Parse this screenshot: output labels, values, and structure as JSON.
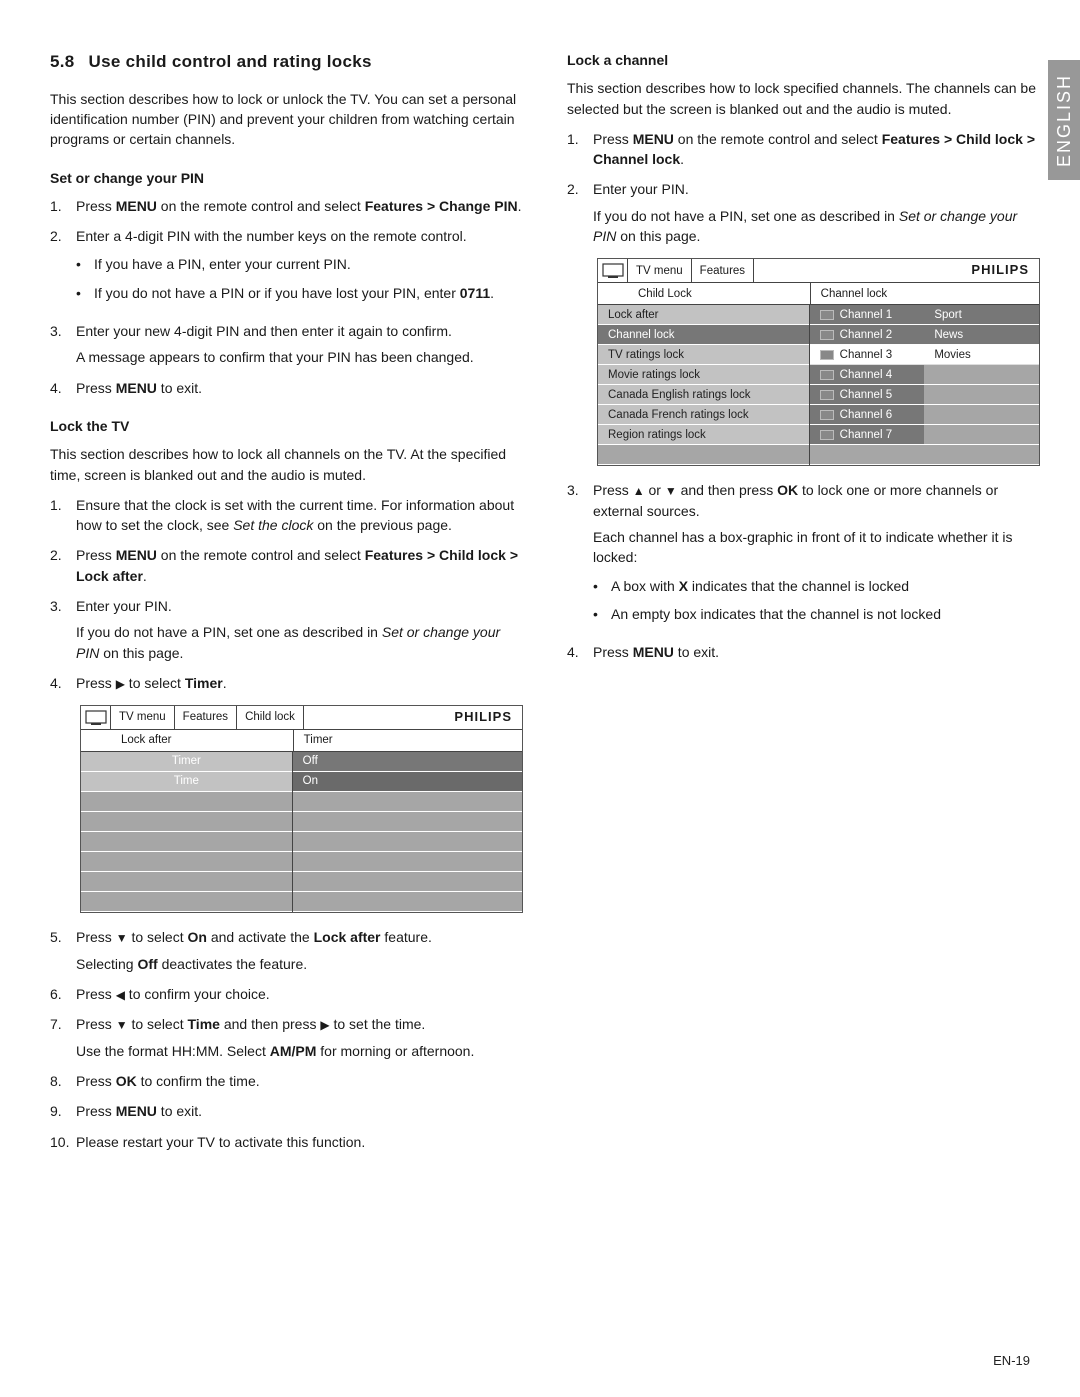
{
  "lang_tab": "ENGLISH",
  "section_number": "5.8",
  "section_title": "Use child control and rating locks",
  "intro": "This section describes how to lock or unlock the TV.  You can set a personal identification number (PIN) and prevent your children from watching certain programs or certain channels.",
  "subheads": {
    "set_pin": "Set or change your PIN",
    "lock_tv": "Lock the TV",
    "lock_channel": "Lock a channel"
  },
  "set_pin_steps": [
    {
      "num": "1.",
      "parts": [
        "Press ",
        "MENU",
        " on the remote control and select ",
        "Features > Change PIN",
        "."
      ]
    },
    {
      "num": "2.",
      "parts": [
        "Enter a 4-digit PIN with the number keys on the remote control."
      ],
      "bullets": [
        [
          "If you have a PIN, enter your current PIN."
        ],
        [
          "If you do not have a PIN or if you have lost your PIN, enter ",
          "0711",
          "."
        ]
      ]
    },
    {
      "num": "3.",
      "parts": [
        "Enter your new 4-digit PIN and then enter it again to confirm."
      ],
      "after": "A message appears to confirm that your PIN has been changed."
    },
    {
      "num": "4.",
      "parts": [
        "Press ",
        "MENU",
        " to exit."
      ]
    }
  ],
  "lock_tv_intro": "This section describes how to lock all channels on the TV.  At the specified time, screen is blanked out and the audio is muted.",
  "lock_tv_steps_a": [
    {
      "num": "1.",
      "parts": [
        "Ensure that the clock is set with the current time.  For information about how to set the clock, see "
      ],
      "italic": "Set the clock",
      "tail": " on the previous page."
    },
    {
      "num": "2.",
      "parts": [
        "Press ",
        "MENU",
        " on the remote control and select ",
        "Features > Child lock > Lock after",
        "."
      ]
    },
    {
      "num": "3.",
      "parts": [
        "Enter your PIN."
      ],
      "after_parts": [
        "If you do not have a PIN, set one as described in "
      ],
      "after_italic": "Set or change your PIN",
      "after_tail": " on this page."
    },
    {
      "num": "4.",
      "parts": [
        "Press ",
        "▶",
        " to select ",
        "Timer",
        "."
      ]
    }
  ],
  "lock_tv_steps_b": [
    {
      "num": "5.",
      "parts": [
        "Press ",
        "▼",
        " to select ",
        "On",
        " and activate the ",
        "Lock after",
        " feature."
      ],
      "after_parts": [
        "Selecting ",
        "Off",
        " deactivates the feature."
      ]
    },
    {
      "num": "6.",
      "parts": [
        "Press ",
        "◀",
        " to confirm your choice."
      ]
    },
    {
      "num": "7.",
      "parts": [
        "Press ",
        "▼",
        " to select ",
        "Time",
        " and then press ",
        "▶",
        " to set the time."
      ],
      "after_parts": [
        "Use the format HH:MM.  Select ",
        "AM/PM",
        " for morning or afternoon."
      ]
    },
    {
      "num": "8.",
      "parts": [
        "Press ",
        "OK",
        " to confirm the time."
      ]
    },
    {
      "num": "9.",
      "parts": [
        "Press ",
        "MENU",
        " to exit."
      ]
    },
    {
      "num": "10.",
      "parts": [
        "Please restart your TV to activate this function."
      ]
    }
  ],
  "lock_channel_intro": "This section describes how to lock specified channels.  The channels can be selected but the screen is blanked out and the audio is muted.",
  "lock_channel_steps_a": [
    {
      "num": "1.",
      "parts": [
        "Press ",
        "MENU",
        " on the remote control and select ",
        "Features > Child lock > Channel lock",
        "."
      ]
    },
    {
      "num": "2.",
      "parts": [
        "Enter your PIN."
      ],
      "after_parts": [
        "If you do not have a PIN, set one as described in "
      ],
      "after_italic": "Set or change your PIN",
      "after_tail": " on this page."
    }
  ],
  "lock_channel_steps_b": [
    {
      "num": "3.",
      "parts": [
        "Press ",
        "▲",
        " or ",
        "▼",
        " and then press ",
        "OK",
        " to lock one or more channels or external sources."
      ],
      "after": "Each channel has a box-graphic in front of it to indicate whether it is locked:",
      "bullets": [
        [
          "A box with ",
          "X",
          " indicates that the channel is locked"
        ],
        [
          "An empty box indicates that the channel is not locked"
        ]
      ]
    },
    {
      "num": "4.",
      "parts": [
        "Press ",
        "MENU",
        " to exit."
      ]
    }
  ],
  "menu1": {
    "brand": "PHILIPS",
    "crumbs": [
      "TV menu",
      "Features",
      "Child lock"
    ],
    "sub_left": "Lock after",
    "sub_right": "Timer",
    "left_rows": [
      {
        "label": "Timer",
        "sel": false,
        "light": true
      },
      {
        "label": "Time",
        "sel": false,
        "light": true
      },
      {
        "label": "",
        "empty": true
      },
      {
        "label": "",
        "empty": true
      },
      {
        "label": "",
        "empty": true
      },
      {
        "label": "",
        "empty": true
      },
      {
        "label": "",
        "empty": true
      },
      {
        "label": "",
        "empty": true
      }
    ],
    "right_rows": [
      {
        "label": "Off",
        "sel": true
      },
      {
        "label": "On",
        "sel": true,
        "darker": true
      },
      {
        "label": "",
        "empty": true
      },
      {
        "label": "",
        "empty": true
      },
      {
        "label": "",
        "empty": true
      },
      {
        "label": "",
        "empty": true
      },
      {
        "label": "",
        "empty": true
      },
      {
        "label": "",
        "empty": true
      }
    ]
  },
  "menu2": {
    "brand": "PHILIPS",
    "crumbs": [
      "TV menu",
      "Features"
    ],
    "sub_left": "Child Lock",
    "sub_right": "Channel lock",
    "left_rows": [
      "Lock after",
      "Channel lock",
      "TV ratings lock",
      "Movie ratings lock",
      "Canada English ratings lock",
      "Canada French ratings lock",
      "Region ratings lock",
      ""
    ],
    "left_sel_index": 1,
    "right_col1": [
      "Channel 1",
      "Channel 2",
      "Channel 3",
      "Channel 4",
      "Channel 5",
      "Channel 6",
      "Channel 7",
      ""
    ],
    "right_col2": [
      "Sport",
      "News",
      "Movies",
      "",
      "",
      "",
      "",
      ""
    ],
    "right_white_index": 2
  },
  "footer": "EN-19",
  "colors": {
    "tab_bg": "#989898",
    "menu_row": "#a6a6a6",
    "menu_row_sel": "#777777",
    "menu_row_light": "#c2c2c2"
  }
}
